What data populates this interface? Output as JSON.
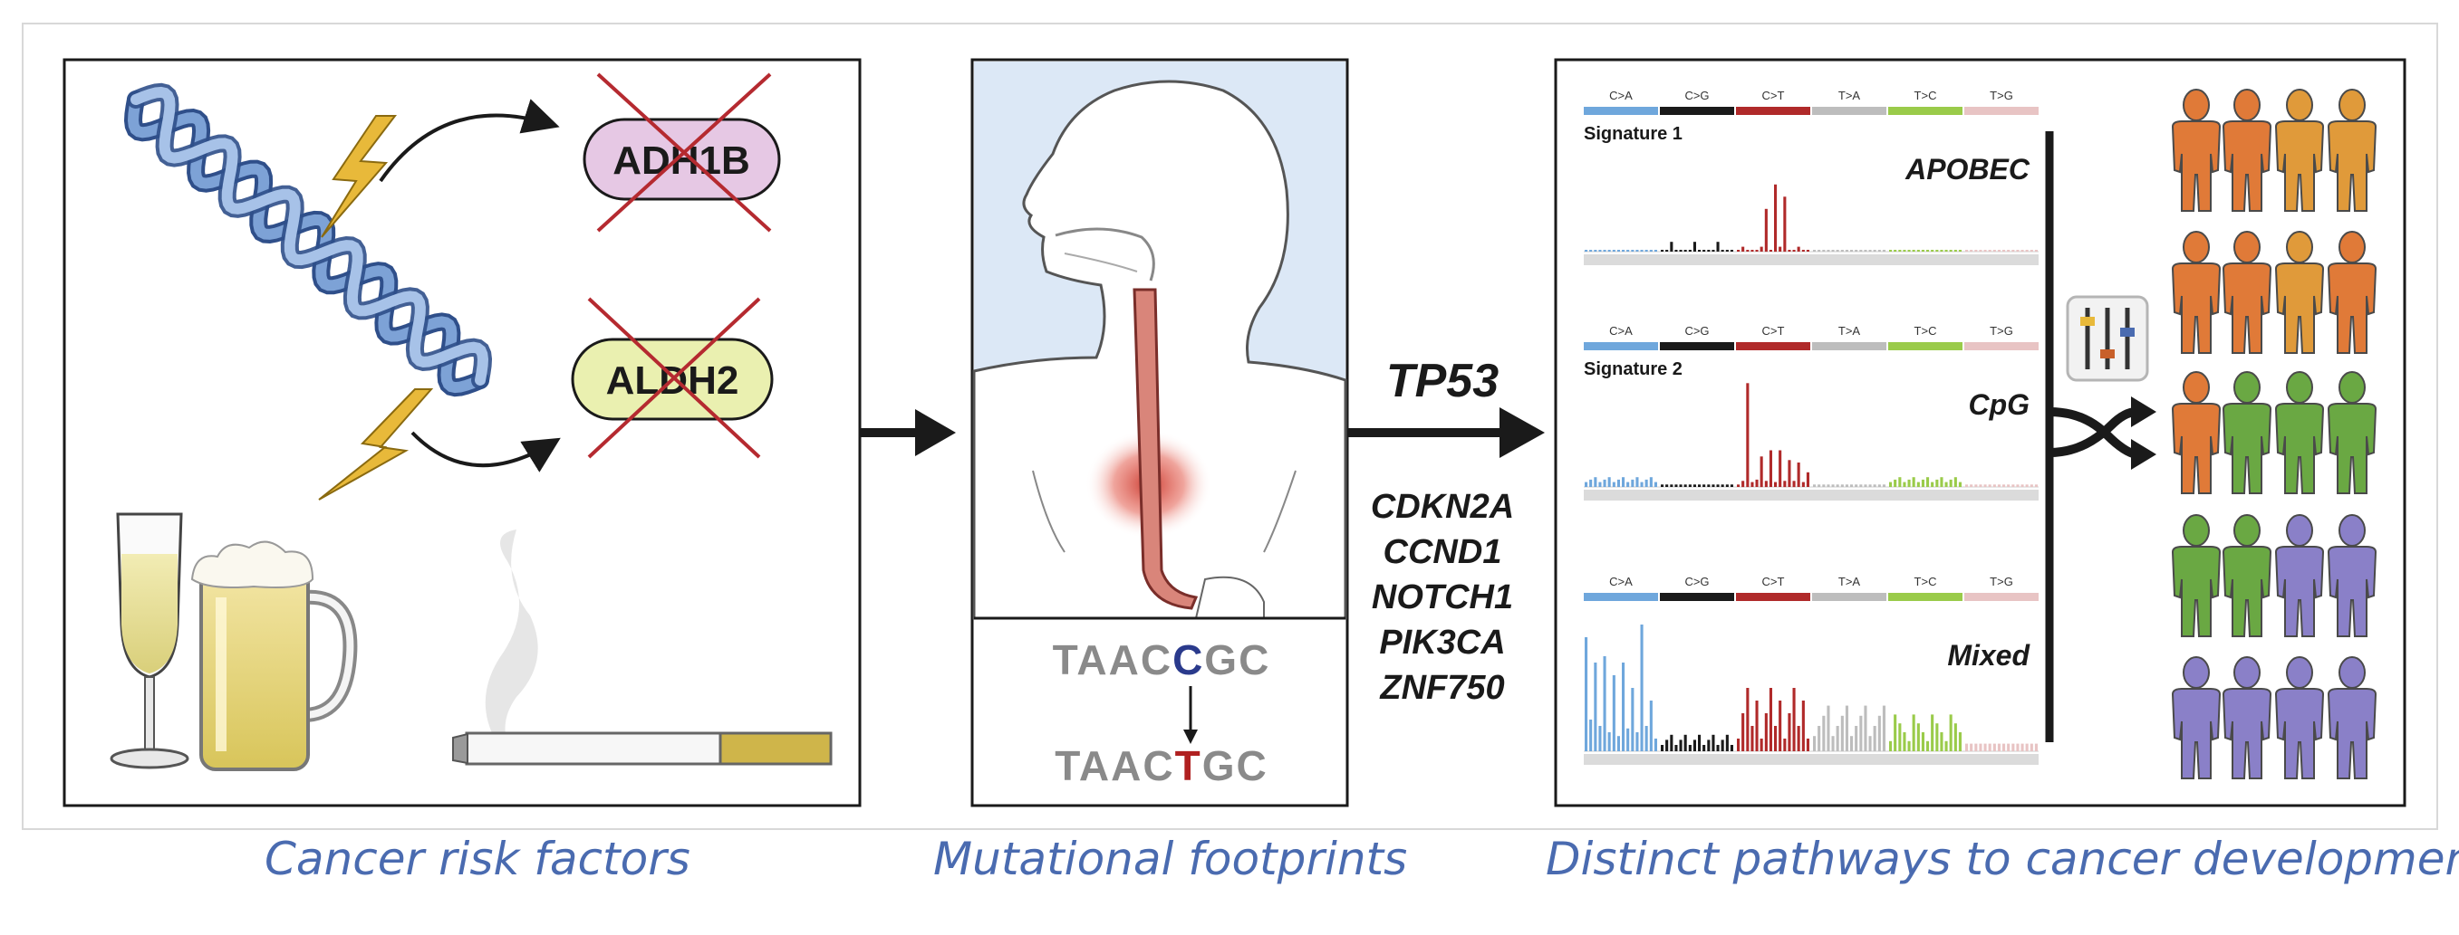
{
  "panel1": {
    "enzymes": [
      {
        "label": "ADH1B",
        "color": "#e6c8e4"
      },
      {
        "label": "ALDH2",
        "color": "#eaf0b0"
      }
    ]
  },
  "panel2": {
    "sequence_top": [
      {
        "ch": "T",
        "color": "#8a8a8a"
      },
      {
        "ch": "A",
        "color": "#8a8a8a"
      },
      {
        "ch": "A",
        "color": "#8a8a8a"
      },
      {
        "ch": "C",
        "color": "#8a8a8a"
      },
      {
        "ch": "C",
        "color": "#2a3a8c"
      },
      {
        "ch": "G",
        "color": "#8a8a8a"
      },
      {
        "ch": "C",
        "color": "#8a8a8a"
      }
    ],
    "sequence_bottom": [
      {
        "ch": "T",
        "color": "#8a8a8a"
      },
      {
        "ch": "A",
        "color": "#8a8a8a"
      },
      {
        "ch": "A",
        "color": "#8a8a8a"
      },
      {
        "ch": "C",
        "color": "#8a8a8a"
      },
      {
        "ch": "T",
        "color": "#b02020"
      },
      {
        "ch": "G",
        "color": "#8a8a8a"
      },
      {
        "ch": "C",
        "color": "#8a8a8a"
      }
    ]
  },
  "genes": {
    "main": "TP53",
    "others": [
      "CDKN2A",
      "CCND1",
      "NOTCH1",
      "PIK3CA",
      "ZNF750"
    ]
  },
  "signatures": {
    "categories": [
      {
        "label": "C>A",
        "color": "#6fa7dc"
      },
      {
        "label": "C>G",
        "color": "#1a1a1a"
      },
      {
        "label": "C>T",
        "color": "#b02a2a"
      },
      {
        "label": "T>A",
        "color": "#bdbdbd"
      },
      {
        "label": "T>C",
        "color": "#9acb4a"
      },
      {
        "label": "T>G",
        "color": "#e8c4c4"
      }
    ],
    "panels": [
      {
        "name": "Signature 1",
        "type_label": "APOBEC"
      },
      {
        "name": "Signature 2",
        "type_label": "CpG"
      },
      {
        "name": "",
        "type_label": "Mixed"
      }
    ]
  },
  "people": {
    "rows": [
      [
        "#e07a38",
        "#e07a38",
        "#e09a3a",
        "#e09a3a"
      ],
      [
        "#e07a38",
        "#e07a38",
        "#e09a3a",
        "#e07a38"
      ],
      [
        "#e07a38",
        "#6aa843",
        "#6aa843",
        "#6aa843"
      ],
      [
        "#6aa843",
        "#6aa843",
        "#8a80c8",
        "#8a80c8"
      ],
      [
        "#8a80c8",
        "#8a80c8",
        "#8a80c8",
        "#8a80c8"
      ]
    ]
  },
  "captions": {
    "left": "Cancer risk factors",
    "middle": "Mutational footprints",
    "right": "Distinct pathways to cancer development"
  }
}
